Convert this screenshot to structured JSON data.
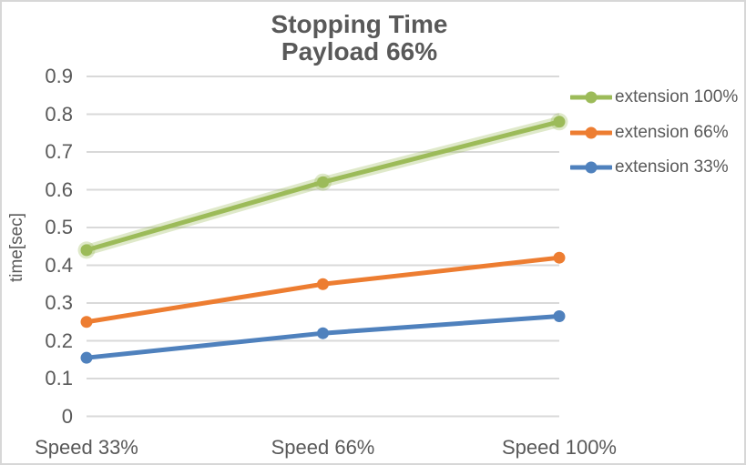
{
  "chart_data": {
    "type": "line",
    "title_lines": [
      "Stopping Time",
      "Payload 66%"
    ],
    "ylabel": "time[sec]",
    "xlabel": "",
    "categories": [
      "Speed 33%",
      "Speed 66%",
      "Speed 100%"
    ],
    "series": [
      {
        "name": "extension 100%",
        "color": "#9cbb59",
        "glow": true,
        "values": [
          0.44,
          0.62,
          0.78
        ]
      },
      {
        "name": "extension 66%",
        "color": "#ed7d31",
        "glow": false,
        "values": [
          0.25,
          0.35,
          0.42
        ]
      },
      {
        "name": "extension 33%",
        "color": "#4f81bd",
        "glow": false,
        "values": [
          0.155,
          0.22,
          0.265
        ]
      }
    ],
    "ylim": [
      0,
      0.9
    ],
    "ytick_step": 0.1,
    "yticks": [
      "0",
      "0.1",
      "0.2",
      "0.3",
      "0.4",
      "0.5",
      "0.6",
      "0.7",
      "0.8",
      "0.9"
    ],
    "grid": true,
    "legend_position": "right",
    "colors": {
      "text": "#595959",
      "gridline": "#d9d9d9",
      "border": "#d7d7d7",
      "background": "#ffffff"
    }
  }
}
